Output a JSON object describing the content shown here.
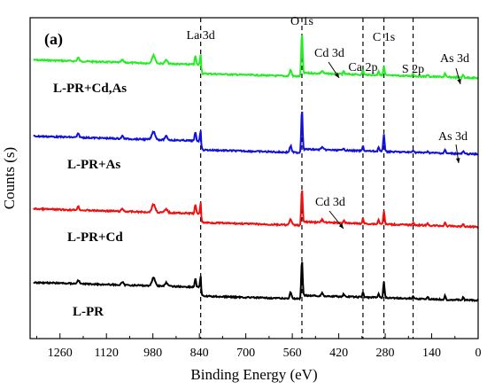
{
  "chart_data": {
    "type": "line",
    "panel_label": "(a)",
    "xlabel": "Binding Energy (eV)",
    "ylabel": "Counts (s)",
    "xlim": [
      1350,
      0
    ],
    "xticks": [
      1260,
      1120,
      980,
      840,
      700,
      560,
      420,
      280,
      140,
      0
    ],
    "reference_lines": [
      {
        "label": "La 3d",
        "x": 836
      },
      {
        "label": "O 1s",
        "x": 531
      },
      {
        "label": "Ca 2p",
        "x": 347
      },
      {
        "label": "C 1s",
        "x": 284
      },
      {
        "label": "S 2p",
        "x": 196
      }
    ],
    "series": [
      {
        "name": "L-PR+Cd,As",
        "color": "#22ee22",
        "offset": 3,
        "annotations": [
          {
            "text": "Cd 3d",
            "x": 405
          },
          {
            "text": "As 3d",
            "x": 45
          }
        ]
      },
      {
        "name": "L-PR+As",
        "color": "#1010e0",
        "offset": 2,
        "annotations": [
          {
            "text": "As 3d",
            "x": 45
          }
        ]
      },
      {
        "name": "L-PR+Cd",
        "color": "#f01010",
        "offset": 1,
        "annotations": [
          {
            "text": "Cd 3d",
            "x": 405
          }
        ]
      },
      {
        "name": "L-PR",
        "color": "#000000",
        "offset": 0,
        "annotations": []
      }
    ]
  }
}
